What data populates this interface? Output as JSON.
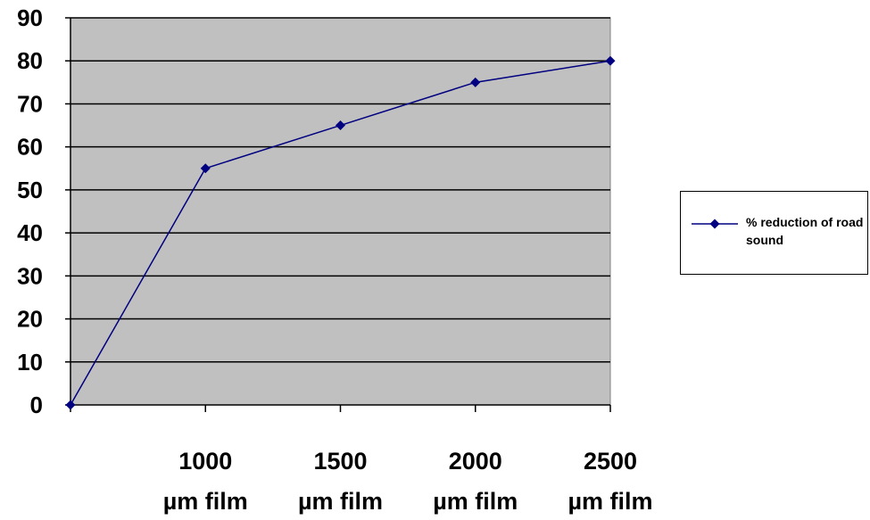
{
  "chart_data": {
    "type": "line",
    "title": "",
    "xlabel": "",
    "ylabel": "",
    "categories": [
      "",
      "1000 µm film",
      "1500 µm film",
      "2000 µm film",
      "2500 µm film"
    ],
    "category_lines": [
      [],
      [
        "1000",
        "µm film"
      ],
      [
        "1500",
        "µm film"
      ],
      [
        "2000",
        "µm film"
      ],
      [
        "2500",
        "µm film"
      ]
    ],
    "series": [
      {
        "name": "% reduction of road sound",
        "values": [
          0,
          55,
          65,
          75,
          80
        ]
      }
    ],
    "ylim": [
      0,
      90
    ],
    "yticks": [
      0,
      10,
      20,
      30,
      40,
      50,
      60,
      70,
      80,
      90
    ],
    "grid": true,
    "legend_position": "right",
    "colors": {
      "plot_background": "#c0c0c0",
      "series": "#000080",
      "gridline": "#000000"
    }
  }
}
